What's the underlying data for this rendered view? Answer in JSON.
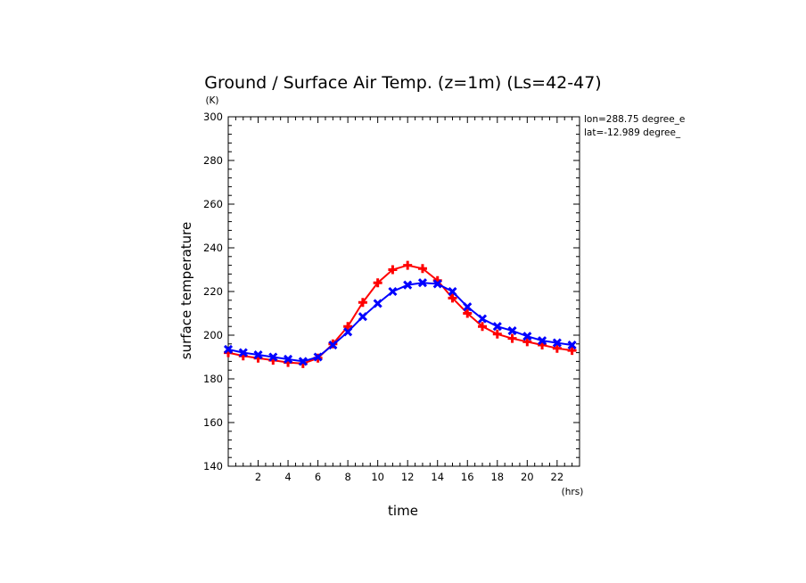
{
  "chart_data": {
    "type": "line",
    "title": "Ground / Surface Air Temp. (z=1m) (Ls=42-47)",
    "xlabel": "time",
    "ylabel": "surface temperature",
    "x_unit": "(hrs)",
    "y_unit": "(K)",
    "xlim": [
      0,
      23.5
    ],
    "ylim": [
      140,
      300
    ],
    "x_ticks": [
      2,
      4,
      6,
      8,
      10,
      12,
      14,
      16,
      18,
      20,
      22
    ],
    "x_tick_labels": [
      "2",
      "4",
      "6",
      "8",
      "10",
      "12",
      "14",
      "16",
      "18",
      "20",
      "22"
    ],
    "y_ticks": [
      140,
      160,
      180,
      200,
      220,
      240,
      260,
      280,
      300
    ],
    "y_tick_labels": [
      "140",
      "160",
      "180",
      "200",
      "220",
      "240",
      "260",
      "280",
      "300"
    ],
    "annotations": [
      "lon=288.75 degree_e",
      "lat=-12.989 degree_"
    ],
    "grid": false,
    "x": [
      0,
      1,
      2,
      3,
      4,
      5,
      6,
      7,
      8,
      9,
      10,
      11,
      12,
      13,
      14,
      15,
      16,
      17,
      18,
      19,
      20,
      21,
      22,
      23
    ],
    "series": [
      {
        "color": "#ff0000",
        "marker": "plus",
        "values": [
          192,
          190.5,
          189.5,
          188.5,
          187.5,
          187,
          189.5,
          196,
          204,
          215,
          224,
          230,
          232,
          230.5,
          225,
          217,
          210,
          204,
          200.5,
          198.5,
          197,
          195.5,
          194,
          193
        ]
      },
      {
        "color": "#0000ff",
        "marker": "x",
        "values": [
          193.5,
          192,
          191,
          190,
          189,
          188,
          190,
          195.5,
          201.5,
          208.5,
          214.5,
          220,
          223,
          224,
          223.5,
          220,
          213,
          207.5,
          204,
          202,
          199.5,
          197.5,
          196.5,
          195.5
        ]
      }
    ]
  }
}
